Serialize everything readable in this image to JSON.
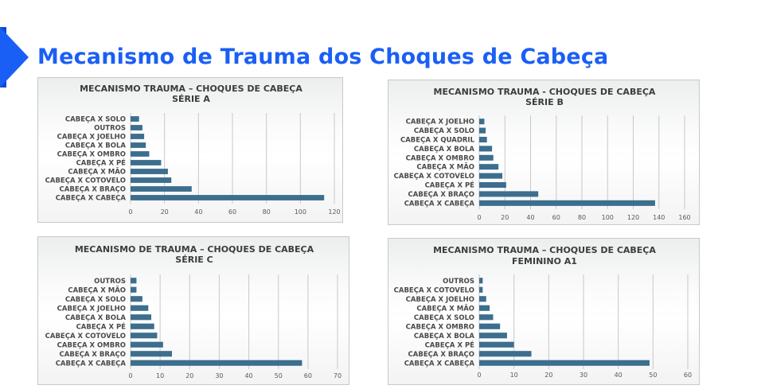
{
  "page": {
    "title": "Mecanismo de Trauma dos Choques de Cabeça"
  },
  "chart_data": [
    {
      "type": "bar",
      "orientation": "horizontal",
      "title": [
        "MECANISMO TRAUMA – CHOQUES DE CABEÇA",
        "SÉRIE A"
      ],
      "categories": [
        "CABEÇA X SOLO",
        "OUTROS",
        "CABEÇA X JOELHO",
        "CABEÇA X BOLA",
        "CABEÇA X OMBRO",
        "CABEÇA X PÉ",
        "CABEÇA X MÃO",
        "CABEÇA X COTOVELO",
        "CABEÇA X BRAÇO",
        "CABEÇA X CABEÇA"
      ],
      "values": [
        5,
        7,
        8,
        9,
        11,
        18,
        22,
        24,
        36,
        114
      ],
      "xlim": [
        0,
        120
      ],
      "xticks": [
        0,
        20,
        40,
        60,
        80,
        100,
        120
      ],
      "grid": true,
      "color": "#3c6e8e"
    },
    {
      "type": "bar",
      "orientation": "horizontal",
      "title": [
        "MECANISMO TRAUMA - CHOQUES DE CABEÇA",
        "SÉRIE B"
      ],
      "categories": [
        "CABEÇA X JOELHO",
        "CABEÇA X SOLO",
        "CABEÇA X QUADRIL",
        "CABEÇA X BOLA",
        "CABEÇA X OMBRO",
        "CABEÇA X MÃO",
        "CABEÇA X COTOVELO",
        "CABEÇA X PÉ",
        "CABEÇA X BRAÇO",
        "CABEÇA X CABEÇA"
      ],
      "values": [
        4,
        5,
        6,
        10,
        11,
        15,
        18,
        21,
        46,
        137
      ],
      "xlim": [
        0,
        160
      ],
      "xticks": [
        0,
        20,
        40,
        60,
        80,
        100,
        120,
        140,
        160
      ],
      "grid": true,
      "color": "#3c6e8e"
    },
    {
      "type": "bar",
      "orientation": "horizontal",
      "title": [
        "MECANISMO DE TRAUMA – CHOQUES DE CABEÇA",
        "SÉRIE C"
      ],
      "categories": [
        "OUTROS",
        "CABEÇA X MÃO",
        "CABEÇA X SOLO",
        "CABEÇA X JOELHO",
        "CABEÇA X BOLA",
        "CABEÇA X PÉ",
        "CABEÇA X COTOVELO",
        "CABEÇA X OMBRO",
        "CABEÇA X BRAÇO",
        "CABEÇA X CABEÇA"
      ],
      "values": [
        2,
        2,
        4,
        6,
        7,
        8,
        9,
        11,
        14,
        58
      ],
      "xlim": [
        0,
        70
      ],
      "xticks": [
        0,
        10,
        20,
        30,
        40,
        50,
        60,
        70
      ],
      "grid": true,
      "color": "#3c6e8e"
    },
    {
      "type": "bar",
      "orientation": "horizontal",
      "title": [
        "MECANISMO TRAUMA – CHOQUES DE CABEÇA",
        "FEMININO A1"
      ],
      "categories": [
        "OUTROS",
        "CABEÇA X COTOVELO",
        "CABEÇA X JOELHO",
        "CABEÇA X MÃO",
        "CABEÇA X SOLO",
        "CABEÇA X OMBRO",
        "CABEÇA X BOLA",
        "CABEÇA X PÉ",
        "CABEÇA X BRAÇO",
        "CABEÇA X CABEÇA"
      ],
      "values": [
        1,
        1,
        2,
        3,
        4,
        6,
        8,
        10,
        15,
        49
      ],
      "xlim": [
        0,
        60
      ],
      "xticks": [
        0,
        10,
        20,
        30,
        40,
        50,
        60
      ],
      "grid": true,
      "color": "#3c6e8e"
    }
  ]
}
